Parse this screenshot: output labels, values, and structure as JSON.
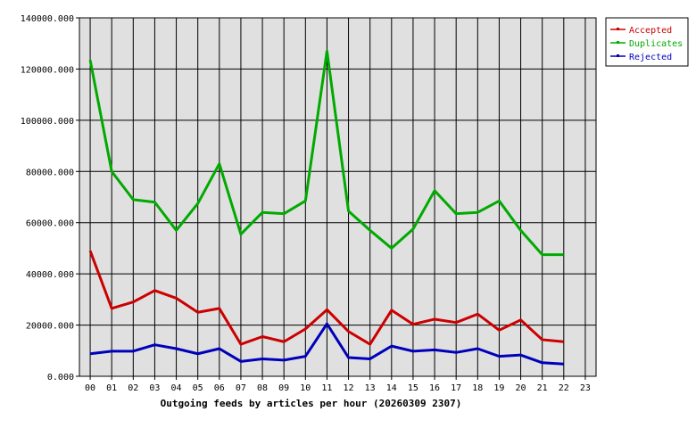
{
  "chart_data": {
    "type": "line",
    "title": "",
    "xlabel": "Outgoing feeds by articles per hour (20260309 2307)",
    "ylabel": "",
    "categories": [
      "00",
      "01",
      "02",
      "03",
      "04",
      "05",
      "06",
      "07",
      "08",
      "09",
      "10",
      "11",
      "12",
      "13",
      "14",
      "15",
      "16",
      "17",
      "18",
      "19",
      "20",
      "21",
      "22",
      "23"
    ],
    "y_ticks": [
      "0.000",
      "20000.000",
      "40000.000",
      "60000.000",
      "80000.000",
      "100000.000",
      "120000.000",
      "140000.000"
    ],
    "ylim": [
      0,
      140000
    ],
    "grid": true,
    "legend_position": "right-top",
    "plot_background": "#e0e0e0",
    "series": [
      {
        "name": "Accepted",
        "color": "#cc0000",
        "values": [
          49000,
          26500,
          29000,
          33500,
          30500,
          25000,
          26500,
          12500,
          15500,
          13500,
          18500,
          26000,
          17500,
          12500,
          25800,
          20300,
          22300,
          21000,
          24300,
          18000,
          22000,
          14300,
          13500,
          null
        ]
      },
      {
        "name": "Duplicates",
        "color": "#00aa00",
        "values": [
          123500,
          80000,
          69000,
          68000,
          57000,
          67500,
          83000,
          55500,
          64000,
          63500,
          68500,
          127000,
          64500,
          57000,
          50000,
          57500,
          72500,
          63500,
          64000,
          68500,
          57000,
          47500,
          47500,
          null
        ]
      },
      {
        "name": "Rejected",
        "color": "#0000bb",
        "values": [
          8800,
          9800,
          9800,
          12300,
          10800,
          8800,
          10800,
          5800,
          6800,
          6300,
          7800,
          20500,
          7300,
          6800,
          11800,
          9800,
          10300,
          9300,
          10800,
          7800,
          8300,
          5300,
          4800,
          null
        ]
      }
    ]
  }
}
